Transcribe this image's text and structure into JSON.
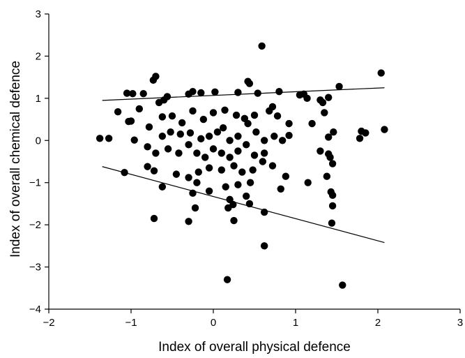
{
  "chart_data": {
    "type": "scatter",
    "title": "",
    "xlabel": "Index of overall physical defence",
    "ylabel": "Index of overall chemical defence",
    "xlim": [
      -2,
      3
    ],
    "ylim": [
      -4,
      3
    ],
    "xticks": [
      -2,
      -1,
      0,
      1,
      2,
      3
    ],
    "yticks": [
      -4,
      -3,
      -2,
      -1,
      0,
      1,
      2,
      3
    ],
    "xtick_labels": [
      "−2",
      "−1",
      "0",
      "1",
      "2",
      "3"
    ],
    "ytick_labels": [
      "−4",
      "−3",
      "−2",
      "−1",
      "0",
      "1",
      "2",
      "3"
    ],
    "grid": false,
    "marker_color": "#000000",
    "points": [
      [
        0.59,
        2.24
      ],
      [
        2.04,
        1.6
      ],
      [
        1.53,
        1.28
      ],
      [
        -0.7,
        1.52
      ],
      [
        -0.73,
        1.43
      ],
      [
        0.42,
        1.4
      ],
      [
        0.44,
        1.35
      ],
      [
        -0.98,
        1.11
      ],
      [
        -1.05,
        1.12
      ],
      [
        -0.56,
        1.04
      ],
      [
        -0.6,
        0.96
      ],
      [
        -0.66,
        0.9
      ],
      [
        -0.85,
        1.11
      ],
      [
        -0.15,
        1.13
      ],
      [
        -0.25,
        1.16
      ],
      [
        -0.3,
        1.1
      ],
      [
        0.02,
        1.15
      ],
      [
        0.3,
        1.14
      ],
      [
        0.54,
        1.12
      ],
      [
        0.8,
        1.16
      ],
      [
        1.05,
        1.08
      ],
      [
        1.1,
        1.1
      ],
      [
        1.14,
        1.0
      ],
      [
        1.4,
        1.02
      ],
      [
        1.3,
        0.96
      ],
      [
        1.33,
        0.9
      ],
      [
        -1.16,
        0.68
      ],
      [
        -1.0,
        0.46
      ],
      [
        -1.03,
        0.45
      ],
      [
        -0.9,
        0.75
      ],
      [
        -0.78,
        0.32
      ],
      [
        -0.62,
        0.56
      ],
      [
        -0.5,
        0.58
      ],
      [
        -0.38,
        0.42
      ],
      [
        -0.25,
        0.7
      ],
      [
        -0.12,
        0.5
      ],
      [
        0.0,
        0.66
      ],
      [
        0.14,
        0.72
      ],
      [
        0.28,
        0.6
      ],
      [
        0.38,
        0.52
      ],
      [
        0.5,
        0.6
      ],
      [
        0.68,
        0.7
      ],
      [
        0.72,
        0.8
      ],
      [
        0.78,
        0.58
      ],
      [
        0.92,
        0.4
      ],
      [
        1.2,
        0.4
      ],
      [
        1.35,
        0.66
      ],
      [
        -1.38,
        0.05
      ],
      [
        -1.27,
        0.05
      ],
      [
        -0.96,
        0.01
      ],
      [
        -0.8,
        -0.15
      ],
      [
        -0.62,
        0.1
      ],
      [
        -0.52,
        0.2
      ],
      [
        -0.4,
        0.15
      ],
      [
        -0.28,
        0.18
      ],
      [
        -0.15,
        0.04
      ],
      [
        -0.05,
        0.1
      ],
      [
        0.05,
        0.2
      ],
      [
        0.12,
        0.3
      ],
      [
        0.2,
        0.0
      ],
      [
        0.3,
        0.1
      ],
      [
        0.42,
        0.4
      ],
      [
        0.52,
        0.2
      ],
      [
        0.62,
        0.0
      ],
      [
        0.74,
        0.1
      ],
      [
        0.84,
        0.0
      ],
      [
        0.92,
        0.12
      ],
      [
        1.4,
        0.08
      ],
      [
        1.46,
        0.2
      ],
      [
        1.8,
        0.22
      ],
      [
        1.85,
        0.18
      ],
      [
        1.78,
        0.05
      ],
      [
        2.08,
        0.26
      ],
      [
        -0.7,
        -0.3
      ],
      [
        -0.55,
        -0.2
      ],
      [
        -0.42,
        -0.3
      ],
      [
        -0.3,
        -0.1
      ],
      [
        -0.2,
        -0.3
      ],
      [
        -0.1,
        -0.4
      ],
      [
        0.0,
        -0.2
      ],
      [
        0.1,
        -0.3
      ],
      [
        0.2,
        -0.4
      ],
      [
        0.3,
        -0.25
      ],
      [
        0.4,
        -0.1
      ],
      [
        0.5,
        -0.35
      ],
      [
        0.62,
        -0.3
      ],
      [
        1.42,
        -0.4
      ],
      [
        1.45,
        -0.55
      ],
      [
        1.4,
        -0.32
      ],
      [
        1.3,
        -0.25
      ],
      [
        -0.8,
        -0.62
      ],
      [
        -0.72,
        -0.72
      ],
      [
        -0.45,
        -0.8
      ],
      [
        -0.3,
        -0.88
      ],
      [
        -0.18,
        -0.75
      ],
      [
        -0.05,
        -0.65
      ],
      [
        0.1,
        -0.7
      ],
      [
        0.25,
        -0.6
      ],
      [
        0.35,
        -0.75
      ],
      [
        0.48,
        -0.7
      ],
      [
        0.6,
        -0.5
      ],
      [
        0.72,
        -0.6
      ],
      [
        0.88,
        -0.85
      ],
      [
        1.15,
        -1.0
      ],
      [
        1.38,
        -0.85
      ],
      [
        -1.08,
        -0.76
      ],
      [
        -0.62,
        -1.1
      ],
      [
        -0.25,
        -1.25
      ],
      [
        -0.2,
        -1.0
      ],
      [
        -0.05,
        -1.2
      ],
      [
        0.15,
        -1.1
      ],
      [
        0.3,
        -1.05
      ],
      [
        0.45,
        -1.0
      ],
      [
        0.82,
        -1.15
      ],
      [
        1.43,
        -1.22
      ],
      [
        1.45,
        -1.3
      ],
      [
        -0.22,
        -1.6
      ],
      [
        0.18,
        -1.6
      ],
      [
        0.2,
        -1.4
      ],
      [
        0.24,
        -1.52
      ],
      [
        0.4,
        -1.32
      ],
      [
        0.44,
        -1.5
      ],
      [
        0.62,
        -1.7
      ],
      [
        1.45,
        -1.55
      ],
      [
        -0.72,
        -1.85
      ],
      [
        -0.3,
        -1.92
      ],
      [
        0.25,
        -1.9
      ],
      [
        1.44,
        -1.96
      ],
      [
        0.62,
        -2.5
      ],
      [
        0.17,
        -3.3
      ],
      [
        1.57,
        -3.43
      ]
    ],
    "lines": [
      {
        "x": [
          -1.35,
          2.08
        ],
        "y": [
          0.95,
          1.25
        ]
      },
      {
        "x": [
          -1.35,
          2.08
        ],
        "y": [
          -0.62,
          -2.42
        ]
      }
    ]
  }
}
